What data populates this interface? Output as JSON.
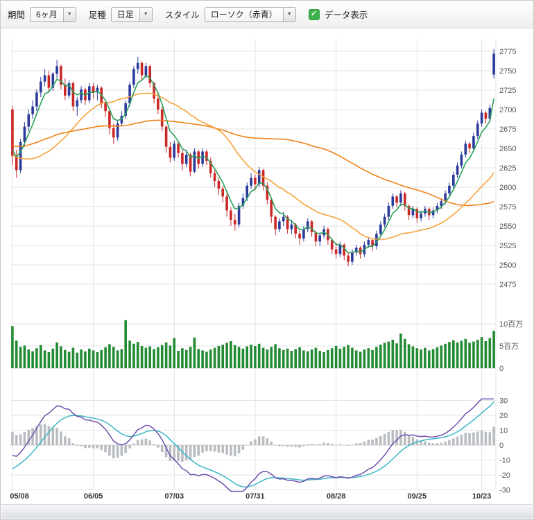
{
  "toolbar": {
    "period_label": "期間",
    "period_value": "6ヶ月",
    "bar_type_label": "足種",
    "bar_type_value": "日足",
    "style_label": "スタイル",
    "style_value": "ローソク（赤青）",
    "data_display_label": "データ表示",
    "checkbox_checked": true,
    "checkbox_color": "#3db14b"
  },
  "chart_data": {
    "type": "candlestick",
    "x_labels": [
      "05/08",
      "06/05",
      "07/03",
      "07/31",
      "08/28",
      "09/25",
      "10/23"
    ],
    "x_label_positions": [
      0,
      20,
      40,
      60,
      80,
      100,
      116
    ],
    "grid_color": "#e3e3e3",
    "price": {
      "y_ticks": [
        2775,
        2750,
        2725,
        2700,
        2675,
        2650,
        2625,
        2600,
        2575,
        2550,
        2525,
        2500,
        2475
      ],
      "up_color": "#2b3a9c",
      "down_color": "#cc2727",
      "ma": [
        {
          "name": "ma-long-orange",
          "type": "sma",
          "period": 75,
          "color": "#ef8218"
        },
        {
          "name": "ma-mid-orange",
          "type": "sma",
          "period": 25,
          "color": "#f6a23b"
        },
        {
          "name": "ma-short-green",
          "type": "ema",
          "period": 5,
          "color": "#2aa05a"
        }
      ],
      "seed_closes": [
        2690,
        2696,
        2702,
        2706,
        2700,
        2710,
        2704,
        2698,
        2694,
        2700,
        2692,
        2686,
        2678,
        2668,
        2658,
        2648,
        2638,
        2618,
        2598,
        2580,
        2570,
        2562,
        2572,
        2592,
        2612,
        2622,
        2632,
        2645,
        2662,
        2682
      ],
      "candles": [
        [
          2700,
          2705,
          2628,
          2640
        ],
        [
          2640,
          2648,
          2612,
          2622
        ],
        [
          2622,
          2662,
          2618,
          2658
        ],
        [
          2658,
          2684,
          2652,
          2678
        ],
        [
          2678,
          2700,
          2672,
          2694
        ],
        [
          2694,
          2712,
          2688,
          2704
        ],
        [
          2704,
          2726,
          2698,
          2722
        ],
        [
          2722,
          2742,
          2716,
          2736
        ],
        [
          2736,
          2752,
          2730,
          2744
        ],
        [
          2744,
          2750,
          2722,
          2728
        ],
        [
          2728,
          2748,
          2724,
          2746
        ],
        [
          2746,
          2764,
          2740,
          2756
        ],
        [
          2756,
          2758,
          2726,
          2732
        ],
        [
          2732,
          2740,
          2712,
          2718
        ],
        [
          2718,
          2738,
          2714,
          2734
        ],
        [
          2734,
          2736,
          2698,
          2704
        ],
        [
          2704,
          2716,
          2692,
          2712
        ],
        [
          2712,
          2730,
          2708,
          2726
        ],
        [
          2726,
          2728,
          2706,
          2712
        ],
        [
          2712,
          2734,
          2708,
          2730
        ],
        [
          2730,
          2734,
          2714,
          2722
        ],
        [
          2722,
          2732,
          2712,
          2728
        ],
        [
          2728,
          2730,
          2702,
          2708
        ],
        [
          2708,
          2712,
          2690,
          2698
        ],
        [
          2698,
          2700,
          2668,
          2676
        ],
        [
          2676,
          2682,
          2656,
          2664
        ],
        [
          2664,
          2686,
          2660,
          2682
        ],
        [
          2682,
          2698,
          2678,
          2692
        ],
        [
          2692,
          2712,
          2688,
          2708
        ],
        [
          2708,
          2736,
          2704,
          2732
        ],
        [
          2732,
          2756,
          2728,
          2752
        ],
        [
          2752,
          2768,
          2746,
          2760
        ],
        [
          2760,
          2762,
          2738,
          2744
        ],
        [
          2744,
          2760,
          2740,
          2756
        ],
        [
          2756,
          2758,
          2728,
          2734
        ],
        [
          2734,
          2736,
          2708,
          2714
        ],
        [
          2714,
          2722,
          2694,
          2700
        ],
        [
          2700,
          2704,
          2672,
          2678
        ],
        [
          2678,
          2680,
          2644,
          2652
        ],
        [
          2652,
          2658,
          2632,
          2638
        ],
        [
          2638,
          2660,
          2634,
          2656
        ],
        [
          2656,
          2658,
          2638,
          2644
        ],
        [
          2644,
          2648,
          2622,
          2630
        ],
        [
          2630,
          2648,
          2626,
          2642
        ],
        [
          2642,
          2644,
          2614,
          2620
        ],
        [
          2620,
          2650,
          2618,
          2646
        ],
        [
          2646,
          2648,
          2624,
          2630
        ],
        [
          2630,
          2650,
          2626,
          2646
        ],
        [
          2646,
          2648,
          2628,
          2634
        ],
        [
          2634,
          2638,
          2612,
          2618
        ],
        [
          2618,
          2622,
          2600,
          2608
        ],
        [
          2608,
          2612,
          2590,
          2598
        ],
        [
          2598,
          2602,
          2580,
          2588
        ],
        [
          2588,
          2592,
          2562,
          2570
        ],
        [
          2570,
          2574,
          2550,
          2558
        ],
        [
          2558,
          2566,
          2544,
          2552
        ],
        [
          2552,
          2580,
          2548,
          2576
        ],
        [
          2576,
          2592,
          2572,
          2586
        ],
        [
          2586,
          2606,
          2582,
          2602
        ],
        [
          2602,
          2618,
          2598,
          2612
        ],
        [
          2612,
          2616,
          2596,
          2604
        ],
        [
          2604,
          2626,
          2600,
          2622
        ],
        [
          2622,
          2624,
          2596,
          2602
        ],
        [
          2602,
          2606,
          2578,
          2584
        ],
        [
          2584,
          2586,
          2554,
          2562
        ],
        [
          2562,
          2564,
          2538,
          2546
        ],
        [
          2546,
          2560,
          2542,
          2556
        ],
        [
          2556,
          2568,
          2550,
          2562
        ],
        [
          2562,
          2564,
          2540,
          2546
        ],
        [
          2546,
          2558,
          2540,
          2552
        ],
        [
          2552,
          2554,
          2534,
          2540
        ],
        [
          2540,
          2544,
          2526,
          2534
        ],
        [
          2534,
          2550,
          2530,
          2546
        ],
        [
          2546,
          2560,
          2542,
          2556
        ],
        [
          2556,
          2558,
          2536,
          2542
        ],
        [
          2542,
          2544,
          2524,
          2530
        ],
        [
          2530,
          2542,
          2524,
          2538
        ],
        [
          2538,
          2550,
          2534,
          2546
        ],
        [
          2546,
          2548,
          2526,
          2532
        ],
        [
          2532,
          2534,
          2514,
          2520
        ],
        [
          2520,
          2528,
          2508,
          2514
        ],
        [
          2514,
          2530,
          2510,
          2526
        ],
        [
          2526,
          2528,
          2506,
          2512
        ],
        [
          2512,
          2516,
          2498,
          2504
        ],
        [
          2504,
          2520,
          2500,
          2516
        ],
        [
          2516,
          2526,
          2512,
          2522
        ],
        [
          2522,
          2524,
          2508,
          2514
        ],
        [
          2514,
          2530,
          2510,
          2526
        ],
        [
          2526,
          2536,
          2522,
          2532
        ],
        [
          2532,
          2534,
          2518,
          2524
        ],
        [
          2524,
          2544,
          2520,
          2540
        ],
        [
          2540,
          2556,
          2536,
          2552
        ],
        [
          2552,
          2566,
          2548,
          2562
        ],
        [
          2562,
          2580,
          2558,
          2576
        ],
        [
          2576,
          2592,
          2572,
          2588
        ],
        [
          2588,
          2590,
          2574,
          2580
        ],
        [
          2580,
          2596,
          2576,
          2592
        ],
        [
          2592,
          2594,
          2570,
          2576
        ],
        [
          2576,
          2578,
          2558,
          2564
        ],
        [
          2564,
          2576,
          2560,
          2572
        ],
        [
          2572,
          2574,
          2554,
          2560
        ],
        [
          2560,
          2570,
          2556,
          2566
        ],
        [
          2566,
          2576,
          2562,
          2572
        ],
        [
          2572,
          2574,
          2558,
          2564
        ],
        [
          2564,
          2574,
          2560,
          2570
        ],
        [
          2570,
          2580,
          2566,
          2576
        ],
        [
          2576,
          2586,
          2572,
          2582
        ],
        [
          2582,
          2596,
          2578,
          2592
        ],
        [
          2592,
          2606,
          2588,
          2602
        ],
        [
          2602,
          2620,
          2598,
          2616
        ],
        [
          2616,
          2632,
          2612,
          2628
        ],
        [
          2628,
          2646,
          2624,
          2642
        ],
        [
          2642,
          2660,
          2638,
          2656
        ],
        [
          2656,
          2658,
          2644,
          2650
        ],
        [
          2650,
          2670,
          2646,
          2666
        ],
        [
          2666,
          2686,
          2662,
          2682
        ],
        [
          2682,
          2700,
          2678,
          2696
        ],
        [
          2696,
          2698,
          2682,
          2688
        ],
        [
          2688,
          2706,
          2684,
          2702
        ],
        [
          2745,
          2778,
          2740,
          2772
        ]
      ]
    },
    "volume": {
      "y_ticks": [
        {
          "value": 10,
          "label": "10百万"
        },
        {
          "value": 5,
          "label": "5百万"
        },
        {
          "value": 0,
          "label": "0"
        }
      ],
      "color": "#228b33",
      "values_millions": [
        9.5,
        6.2,
        4.8,
        5.1,
        4.2,
        3.8,
        4.5,
        5.2,
        4.0,
        3.6,
        4.4,
        5.8,
        4.9,
        4.1,
        3.7,
        4.6,
        3.5,
        4.2,
        3.8,
        4.4,
        4.0,
        3.6,
        4.1,
        4.7,
        5.4,
        4.8,
        4.0,
        4.3,
        10.8,
        6.2,
        5.5,
        5.9,
        5.0,
        4.6,
        4.9,
        4.3,
        4.7,
        5.2,
        5.8,
        5.1,
        6.8,
        3.9,
        4.5,
        4.1,
        4.8,
        6.9,
        4.3,
        4.0,
        3.7,
        4.2,
        4.6,
        5.0,
        5.3,
        5.7,
        6.1,
        5.2,
        4.8,
        4.4,
        4.9,
        5.3,
        5.0,
        5.5,
        4.6,
        4.2,
        4.8,
        5.4,
        4.5,
        4.1,
        4.4,
        3.9,
        4.3,
        4.7,
        4.0,
        3.8,
        4.2,
        4.6,
        3.9,
        3.6,
        4.1,
        4.5,
        5.0,
        4.4,
        4.8,
        5.2,
        4.6,
        4.0,
        3.7,
        4.2,
        4.5,
        4.1,
        4.8,
        5.3,
        5.7,
        6.0,
        6.4,
        5.6,
        7.8,
        6.6,
        5.4,
        4.9,
        4.5,
        4.2,
        4.6,
        4.0,
        4.3,
        4.7,
        5.1,
        5.5,
        5.9,
        6.3,
        5.8,
        6.2,
        6.6,
        5.7,
        6.0,
        6.4,
        7.0,
        6.1,
        6.8,
        8.4
      ]
    },
    "oscillator": {
      "y_ticks": [
        30,
        20,
        10,
        0,
        -10,
        -20,
        -30
      ],
      "fast_period": 12,
      "slow_period": 26,
      "signal_period": 9,
      "macd_color": "#6e4fae",
      "signal_color": "#3ab6c6",
      "hist_color": "#b9bdc2"
    }
  }
}
